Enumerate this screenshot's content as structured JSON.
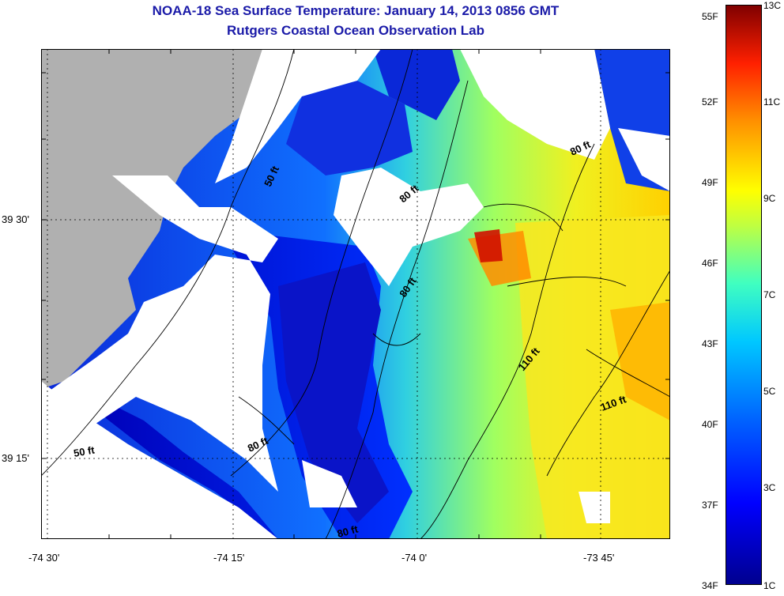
{
  "header": {
    "title": "NOAA-18 Sea Surface Temperature:  January 14, 2013 0856 GMT",
    "subtitle": "Rutgers Coastal Ocean Observation Lab"
  },
  "axes": {
    "x_ticks": [
      "-74 30'",
      "-74 15'",
      "-74 0'",
      "-73 45'"
    ],
    "y_ticks": [
      "39 30'",
      "39 15'"
    ]
  },
  "contours": {
    "labels": [
      "50 ft",
      "80 ft",
      "80 ft",
      "80 ft",
      "110 ft",
      "110 ft",
      "50 ft",
      "80 ft",
      "80 ft"
    ]
  },
  "colorbar": {
    "fahrenheit": [
      "55F",
      "52F",
      "49F",
      "46F",
      "43F",
      "40F",
      "37F",
      "34F"
    ],
    "celsius": [
      "13C",
      "11C",
      "9C",
      "7C",
      "5C",
      "3C",
      "1C"
    ]
  },
  "colors": {
    "title": "#1a1aa8",
    "land": "#b0b0b0",
    "cloud": "#ffffff"
  }
}
